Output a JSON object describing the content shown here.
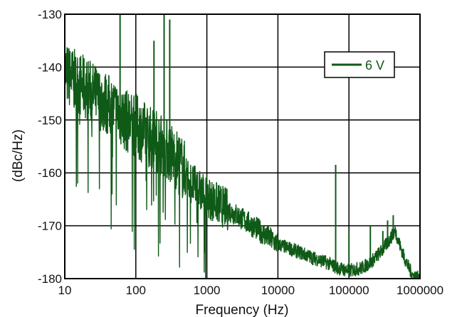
{
  "colors": {
    "series": "#0f5a17",
    "grid": "#000000",
    "background": "#ffffff"
  },
  "chart_data": {
    "type": "line",
    "title": "",
    "xlabel": "Frequency (Hz)",
    "ylabel": "(dBc/Hz)",
    "xscale": "log",
    "xlim": [
      10,
      1000000
    ],
    "ylim": [
      -180,
      -130
    ],
    "xticks": [
      10,
      100,
      1000,
      10000,
      100000,
      1000000
    ],
    "xtick_labels": [
      "10",
      "100",
      "1000",
      "10000",
      "100000",
      "1000000"
    ],
    "yticks": [
      -130,
      -140,
      -150,
      -160,
      -170,
      -180
    ],
    "ytick_labels": [
      "-130",
      "-140",
      "-150",
      "-160",
      "-170",
      "-180"
    ],
    "grid": true,
    "legend_position": "top-right",
    "series": [
      {
        "name": "6 V",
        "color": "#0f5a17",
        "x": [
          10,
          12,
          15,
          20,
          25,
          30,
          40,
          50,
          60,
          70,
          80,
          100,
          120,
          150,
          200,
          250,
          300,
          400,
          500,
          600,
          800,
          1000,
          1500,
          2000,
          3000,
          5000,
          7000,
          10000,
          20000,
          30000,
          50000,
          70000,
          100000,
          150000,
          200000,
          300000,
          400000,
          450000,
          500000,
          600000,
          700000,
          800000,
          1000000
        ],
        "y": [
          -141,
          -142,
          -143,
          -144,
          -145,
          -146,
          -147,
          -148,
          -149,
          -150,
          -150.5,
          -151,
          -152,
          -153,
          -154,
          -155,
          -156,
          -158,
          -160,
          -162,
          -163.5,
          -164.5,
          -166,
          -167,
          -168.5,
          -170.5,
          -172,
          -173.5,
          -175,
          -176,
          -177,
          -178,
          -178.5,
          -178,
          -177,
          -174.5,
          -172,
          -171,
          -173,
          -176,
          -178,
          -179.5,
          -180
        ]
      }
    ],
    "spikes": [
      {
        "x": 60,
        "y": -130
      },
      {
        "x": 180,
        "y": -135
      },
      {
        "x": 250,
        "y": -130
      },
      {
        "x": 300,
        "y": -131
      },
      {
        "x": 65000,
        "y": -158.5
      },
      {
        "x": 100000,
        "y": -171
      },
      {
        "x": 200000,
        "y": -170
      },
      {
        "x": 300000,
        "y": -171
      },
      {
        "x": 350000,
        "y": -169
      },
      {
        "x": 420000,
        "y": -168
      }
    ]
  }
}
